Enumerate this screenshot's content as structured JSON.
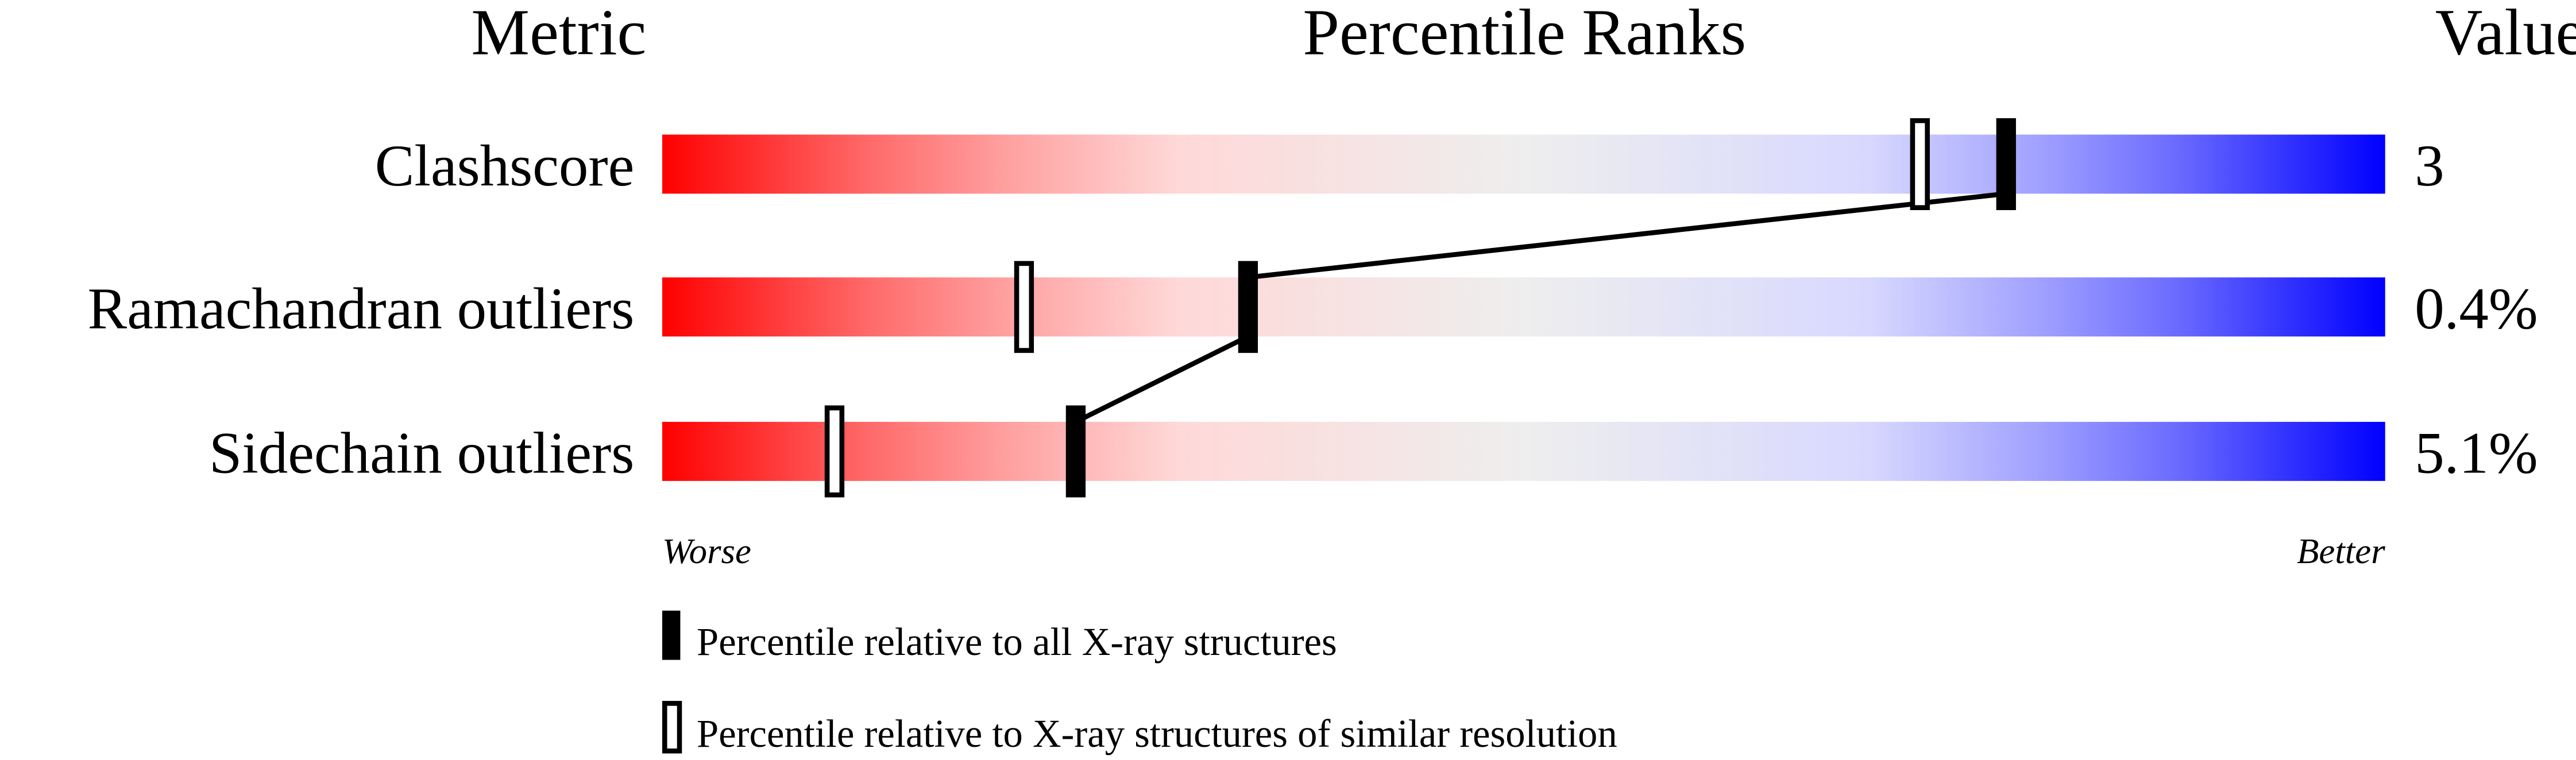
{
  "chart_data": {
    "type": "percentile-ranks",
    "headers": {
      "metric": "Metric",
      "ranks": "Percentile Ranks",
      "value": "Value"
    },
    "xlim": [
      0,
      100
    ],
    "axis_labels": {
      "left": "Worse",
      "right": "Better"
    },
    "gradient_colors": [
      "#ff0000",
      "#ff8080",
      "#ffd8d8",
      "#eeeeee",
      "#d8d8ff",
      "#8080ff",
      "#0000ff"
    ],
    "rows": [
      {
        "metric": "Clashscore",
        "value": "3",
        "percentile_all": 78,
        "percentile_similar": 73
      },
      {
        "metric": "Ramachandran outliers",
        "value": "0.4%",
        "percentile_all": 34,
        "percentile_similar": 21
      },
      {
        "metric": "Sidechain outliers",
        "value": "5.1%",
        "percentile_all": 24,
        "percentile_similar": 10
      }
    ],
    "legend": {
      "all": "Percentile relative to all X-ray structures",
      "similar": "Percentile relative to X-ray structures of similar resolution"
    }
  }
}
